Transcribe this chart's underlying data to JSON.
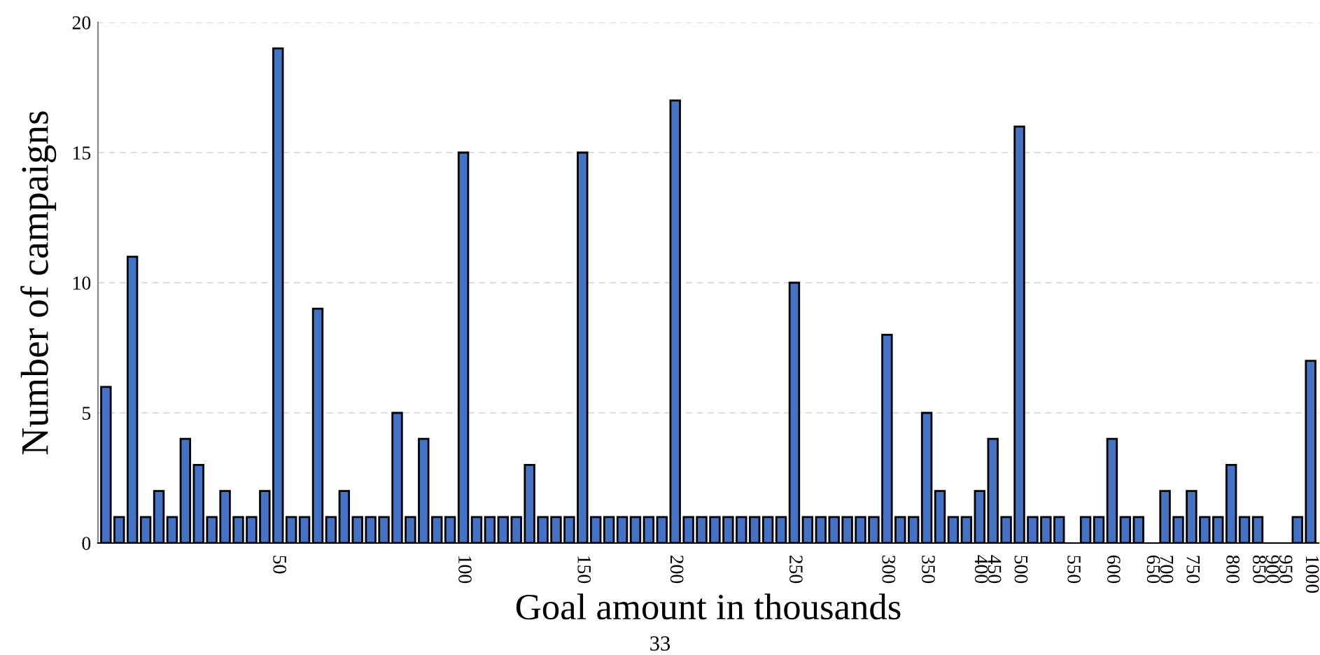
{
  "chart_data": {
    "type": "bar",
    "xlabel": "Goal amount in thousands",
    "ylabel": "Number of campaigns",
    "annotations": [
      "33"
    ],
    "categories": [
      null,
      null,
      null,
      null,
      null,
      null,
      null,
      null,
      null,
      null,
      null,
      null,
      null,
      "50",
      null,
      null,
      null,
      null,
      null,
      null,
      null,
      null,
      null,
      null,
      null,
      null,
      null,
      "100",
      null,
      null,
      null,
      null,
      null,
      null,
      null,
      null,
      "150",
      null,
      null,
      null,
      null,
      null,
      null,
      "200",
      null,
      null,
      null,
      null,
      null,
      null,
      null,
      null,
      "250",
      null,
      null,
      null,
      null,
      null,
      null,
      "300",
      null,
      null,
      "350",
      null,
      null,
      null,
      "400",
      "450",
      null,
      "500",
      null,
      null,
      null,
      "550",
      null,
      null,
      "600",
      null,
      null,
      "650",
      "700",
      null,
      "750",
      null,
      null,
      "800",
      null,
      "850",
      "900",
      "950",
      null,
      "1000"
    ],
    "values": [
      6,
      1,
      11,
      1,
      2,
      1,
      4,
      3,
      1,
      2,
      1,
      1,
      2,
      19,
      1,
      1,
      9,
      1,
      2,
      1,
      1,
      1,
      5,
      1,
      4,
      1,
      1,
      15,
      1,
      1,
      1,
      1,
      3,
      1,
      1,
      1,
      15,
      1,
      1,
      1,
      1,
      1,
      1,
      17,
      1,
      1,
      1,
      1,
      1,
      1,
      1,
      1,
      10,
      1,
      1,
      1,
      1,
      1,
      1,
      8,
      1,
      1,
      5,
      2,
      1,
      1,
      2,
      4,
      1,
      16,
      1,
      1,
      1,
      0,
      1,
      1,
      4,
      1,
      1,
      0,
      2,
      1,
      2,
      1,
      1,
      3,
      1,
      1,
      0,
      0,
      1,
      7
    ],
    "color": "#4472c4",
    "ylim": [
      0,
      20
    ],
    "yticks": [
      0,
      5,
      10,
      15,
      20
    ],
    "grid": "y"
  }
}
